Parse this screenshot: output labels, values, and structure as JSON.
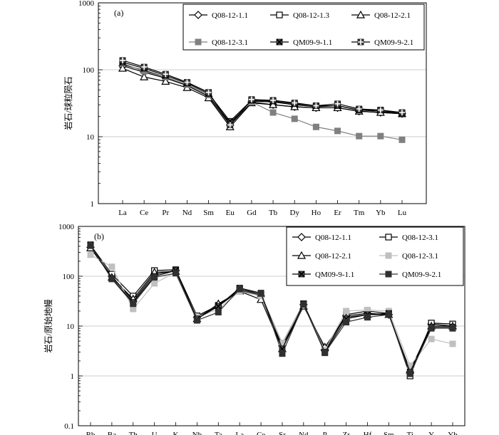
{
  "chart_data": [
    {
      "type": "line",
      "panel_label": "(a)",
      "ylabel": "岩石/球粒陨石",
      "yscale": "log",
      "ylim": [
        1,
        1000
      ],
      "ytick_labels": [
        "1",
        "10",
        "100",
        "1000"
      ],
      "categories": [
        "La",
        "Ce",
        "Pr",
        "Nd",
        "Sm",
        "Eu",
        "Gd",
        "Tb",
        "Dy",
        "Ho",
        "Er",
        "Tm",
        "Yb",
        "Lu"
      ],
      "legend_location": "top-right",
      "series": [
        {
          "name": "Q08-12-1.1",
          "marker": "diamond-open",
          "color": "#000000",
          "values": [
            115,
            92,
            75,
            58,
            40,
            15,
            33,
            30,
            28,
            27,
            27,
            24,
            23,
            22
          ]
        },
        {
          "name": "Q08-12-1.3",
          "marker": "square-open",
          "color": "#000000",
          "values": [
            120,
            98,
            78,
            60,
            42,
            16,
            34,
            33,
            30,
            28,
            29,
            25,
            24,
            22
          ]
        },
        {
          "name": "Q08-12-2.1",
          "marker": "triangle-open",
          "color": "#000000",
          "values": [
            105,
            78,
            67,
            54,
            38,
            14,
            32,
            30,
            28,
            27,
            27,
            24,
            23,
            22
          ]
        },
        {
          "name": "Q08-12-3.1",
          "marker": "square-filled",
          "color": "#808080",
          "values": [
            125,
            95,
            78,
            60,
            42,
            17,
            33,
            23,
            18.5,
            14,
            12.2,
            10.2,
            10.2,
            9
          ]
        },
        {
          "name": "QM09-9-1.1",
          "marker": "x-filled",
          "color": "#000000",
          "values": [
            130,
            105,
            82,
            63,
            44,
            17,
            35,
            34,
            31,
            29,
            29,
            25,
            25,
            22
          ]
        },
        {
          "name": "QM09-9-2.1",
          "marker": "plus-square",
          "color": "#000000",
          "values": [
            138,
            110,
            86,
            65,
            46,
            15,
            36,
            35,
            32,
            29,
            31,
            26,
            25,
            23
          ]
        }
      ]
    },
    {
      "type": "line",
      "panel_label": "(b)",
      "ylabel": "岩石/原始地幔",
      "yscale": "log",
      "ylim": [
        0.1,
        1000
      ],
      "ytick_labels": [
        "0.1",
        "1",
        "10",
        "100",
        "1000"
      ],
      "categories": [
        "Rb",
        "Ba",
        "Th",
        "U",
        "K",
        "Nb",
        "Ta",
        "La",
        "Ce",
        "Sr",
        "Nd",
        "P",
        "Zr",
        "Hf",
        "Sm",
        "Ti",
        "Y",
        "Yb"
      ],
      "legend_location": "top-right",
      "series": [
        {
          "name": "Q08-12-1.1",
          "marker": "diamond-open",
          "color": "#000000",
          "values": [
            380,
            100,
            32,
            110,
            130,
            15,
            25,
            52,
            40,
            4,
            27,
            3.2,
            16,
            18,
            17,
            1.2,
            11,
            10
          ]
        },
        {
          "name": "Q08-12-3.1",
          "marker": "square-open",
          "color": "#000000",
          "values": [
            420,
            110,
            40,
            130,
            135,
            16,
            26,
            55,
            42,
            4.5,
            28,
            3.5,
            17,
            20,
            18,
            1.0,
            11.5,
            11
          ]
        },
        {
          "name": "Q08-12-2.1",
          "marker": "triangle-open",
          "color": "#000000",
          "values": [
            370,
            95,
            35,
            120,
            125,
            14,
            28,
            50,
            34,
            3.5,
            25,
            3.8,
            15,
            17,
            17,
            1.3,
            10,
            10
          ]
        },
        {
          "name": "Q08-12-3.1",
          "marker": "square-filled",
          "color": "#c0c0c0",
          "values": [
            270,
            155,
            22,
            72,
            120,
            15,
            22,
            50,
            40,
            4.5,
            27,
            3.3,
            20,
            21,
            20,
            1.6,
            5.5,
            4.4
          ]
        },
        {
          "name": "QM09-9-1.1",
          "marker": "x-filled",
          "color": "#000000",
          "values": [
            430,
            90,
            30,
            100,
            130,
            14,
            25,
            58,
            46,
            3.5,
            28,
            3.0,
            14,
            17,
            18,
            1.2,
            9.5,
            9.5
          ]
        },
        {
          "name": "QM09-9-2.1",
          "marker": "square-filled",
          "color": "#303030",
          "values": [
            410,
            88,
            28,
            95,
            115,
            13,
            19,
            55,
            45,
            2.8,
            27,
            2.9,
            12,
            15,
            17,
            1.1,
            9,
            9
          ]
        }
      ]
    }
  ]
}
